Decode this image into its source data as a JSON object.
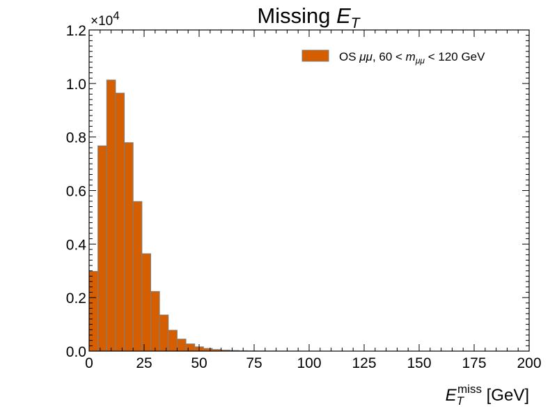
{
  "chart_data": {
    "type": "bar",
    "title_prefix": "Missing ",
    "title_var": "E",
    "title_sub": "T",
    "xlabel_var": "E",
    "xlabel_sub": "T",
    "xlabel_sup": "miss",
    "xlabel_unit": " [GeV]",
    "y_multiplier_base": "×10",
    "y_multiplier_exp": "4",
    "xlim": [
      0,
      200
    ],
    "ylim": [
      0,
      12000
    ],
    "x_ticks": [
      "0",
      "25",
      "50",
      "75",
      "100",
      "125",
      "150",
      "175",
      "200"
    ],
    "y_ticks": [
      "0.0",
      "0.2",
      "0.4",
      "0.6",
      "0.8",
      "1.0",
      "1.2"
    ],
    "bin_width": 4,
    "bin_edges_start": 0,
    "series": [
      {
        "name": "OS μμ, 60 < m_μμ < 120 GeV",
        "legend_prefix": "OS ",
        "legend_mumu": "μμ",
        "legend_mid": ", 60 < ",
        "legend_m": "m",
        "legend_sub": "μμ",
        "legend_suffix": " < 120 GeV",
        "fill": "#d55e00",
        "edge": "#7f7f7f",
        "values": [
          2980,
          7670,
          10130,
          9640,
          7790,
          5590,
          3640,
          2230,
          1350,
          780,
          450,
          270,
          160,
          100,
          60,
          40,
          25,
          15,
          10,
          7,
          5,
          3,
          2,
          2,
          1,
          1,
          1,
          0,
          0,
          0,
          0,
          0,
          0,
          0,
          0,
          0,
          0,
          0,
          0,
          0,
          0,
          0,
          0,
          0,
          0,
          0,
          0,
          0,
          0,
          0
        ]
      }
    ],
    "legend_position": "top-right",
    "grid": false
  }
}
